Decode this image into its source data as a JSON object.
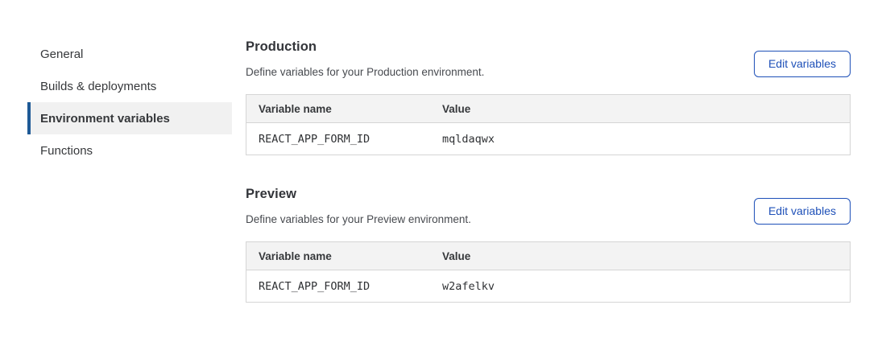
{
  "sidebar": {
    "items": [
      {
        "label": "General",
        "selected": false
      },
      {
        "label": "Builds & deployments",
        "selected": false
      },
      {
        "label": "Environment variables",
        "selected": true
      },
      {
        "label": "Functions",
        "selected": false
      }
    ]
  },
  "sections": [
    {
      "title": "Production",
      "description": "Define variables for your Production environment.",
      "button_label": "Edit variables",
      "table": {
        "columns": [
          "Variable name",
          "Value"
        ],
        "rows": [
          {
            "variable_name": "REACT_APP_FORM_ID",
            "value": "mqldaqwx"
          }
        ]
      }
    },
    {
      "title": "Preview",
      "description": "Define variables for your Preview environment.",
      "button_label": "Edit variables",
      "table": {
        "columns": [
          "Variable name",
          "Value"
        ],
        "rows": [
          {
            "variable_name": "REACT_APP_FORM_ID",
            "value": "w2afelkv"
          }
        ]
      }
    }
  ],
  "colors": {
    "accent_bar": "#1e5a96",
    "button_blue": "#1e50b8",
    "selected_bg": "#f1f1f1",
    "table_header_bg": "#f3f3f3",
    "table_border": "#d5d5d5"
  }
}
